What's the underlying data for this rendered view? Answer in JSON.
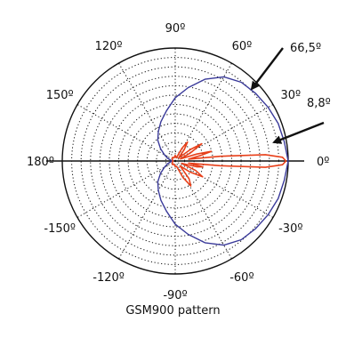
{
  "chart_data": {
    "type": "polar",
    "title": "GSM900 pattern",
    "angle_tick_labels": [
      "0º",
      "30º",
      "60º",
      "90º",
      "120º",
      "150º",
      "180º",
      "-150º",
      "-120º",
      "-90º",
      "-60º",
      "-30º"
    ],
    "angle_tick_values": [
      0,
      30,
      60,
      90,
      120,
      150,
      180,
      -150,
      -120,
      -90,
      -60,
      -30
    ],
    "radial_rings": 12,
    "grid": true,
    "grid_style": "dotted",
    "colors": {
      "pattern_1": "#3a3a9a",
      "pattern_2": "#e8401a",
      "grid": "#111111"
    },
    "series": [
      {
        "color": "#3a3a9a",
        "points": [
          [
            0,
            1.0
          ],
          [
            10,
            0.98
          ],
          [
            20,
            0.97
          ],
          [
            30,
            0.95
          ],
          [
            40,
            0.93
          ],
          [
            50,
            0.91
          ],
          [
            60,
            0.86
          ],
          [
            70,
            0.77
          ],
          [
            80,
            0.66
          ],
          [
            90,
            0.56
          ],
          [
            100,
            0.45
          ],
          [
            110,
            0.37
          ],
          [
            120,
            0.3
          ],
          [
            130,
            0.24
          ],
          [
            140,
            0.17
          ],
          [
            150,
            0.11
          ],
          [
            160,
            0.07
          ],
          [
            170,
            0.04
          ],
          [
            180,
            0.03
          ],
          [
            -170,
            0.04
          ],
          [
            -160,
            0.07
          ],
          [
            -150,
            0.11
          ],
          [
            -140,
            0.17
          ],
          [
            -130,
            0.24
          ],
          [
            -120,
            0.3
          ],
          [
            -110,
            0.37
          ],
          [
            -100,
            0.45
          ],
          [
            -90,
            0.56
          ],
          [
            -80,
            0.66
          ],
          [
            -70,
            0.77
          ],
          [
            -60,
            0.86
          ],
          [
            -50,
            0.91
          ],
          [
            -40,
            0.93
          ],
          [
            -30,
            0.95
          ],
          [
            -20,
            0.97
          ],
          [
            -10,
            0.98
          ]
        ]
      },
      {
        "color": "#e8401a",
        "points": [
          [
            0,
            0.98
          ],
          [
            2,
            0.95
          ],
          [
            4,
            0.8
          ],
          [
            6,
            0.4
          ],
          [
            8,
            0.12
          ],
          [
            12,
            0.22
          ],
          [
            15,
            0.33
          ],
          [
            18,
            0.2
          ],
          [
            22,
            0.05
          ],
          [
            28,
            0.15
          ],
          [
            33,
            0.28
          ],
          [
            37,
            0.17
          ],
          [
            42,
            0.04
          ],
          [
            52,
            0.13
          ],
          [
            57,
            0.2
          ],
          [
            62,
            0.13
          ],
          [
            70,
            0.03
          ],
          [
            90,
            0.05
          ],
          [
            110,
            0.03
          ],
          [
            130,
            0.04
          ],
          [
            150,
            0.03
          ],
          [
            180,
            0.02
          ],
          [
            -150,
            0.03
          ],
          [
            -130,
            0.04
          ],
          [
            -110,
            0.03
          ],
          [
            -90,
            0.05
          ],
          [
            -75,
            0.05
          ],
          [
            -65,
            0.16
          ],
          [
            -58,
            0.26
          ],
          [
            -52,
            0.2
          ],
          [
            -45,
            0.06
          ],
          [
            -37,
            0.16
          ],
          [
            -30,
            0.28
          ],
          [
            -25,
            0.2
          ],
          [
            -20,
            0.06
          ],
          [
            -15,
            0.2
          ],
          [
            -12,
            0.25
          ],
          [
            -9,
            0.12
          ],
          [
            -6,
            0.4
          ],
          [
            -4,
            0.8
          ],
          [
            -2,
            0.95
          ]
        ]
      }
    ],
    "annotations": [
      {
        "text": "66,5º",
        "points_to_angle": 40
      },
      {
        "text": "8,8º",
        "points_to_angle": 13
      }
    ]
  }
}
